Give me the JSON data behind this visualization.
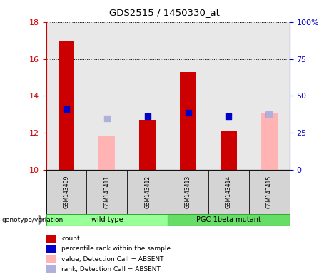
{
  "title": "GDS2515 / 1450330_at",
  "samples": [
    "GSM143409",
    "GSM143411",
    "GSM143412",
    "GSM143413",
    "GSM143414",
    "GSM143415"
  ],
  "ylim_left": [
    10,
    18
  ],
  "ylim_right": [
    0,
    100
  ],
  "yticks_left": [
    10,
    12,
    14,
    16,
    18
  ],
  "yticks_right": [
    0,
    25,
    50,
    75,
    100
  ],
  "yticklabels_right": [
    "0",
    "25",
    "50",
    "75",
    "100%"
  ],
  "red_bars": [
    17.0,
    null,
    12.7,
    15.3,
    12.1,
    null
  ],
  "pink_bars": [
    null,
    11.8,
    null,
    null,
    null,
    13.1
  ],
  "blue_dots": [
    13.3,
    null,
    12.9,
    13.1,
    12.9,
    13.0
  ],
  "lavender_dots": [
    null,
    12.8,
    null,
    null,
    null,
    13.0
  ],
  "bar_color_red": "#cc0000",
  "bar_color_pink": "#ffb3b3",
  "dot_color_blue": "#0000cc",
  "dot_color_lavender": "#b0b0dd",
  "bg_plot": "#e8e8e8",
  "left_axis_color": "#cc0000",
  "right_axis_color": "#0000cc",
  "wt_color": "#99ff99",
  "pgc_color": "#66dd66",
  "group_border": "#33aa33",
  "sample_bg": "#d4d4d4",
  "legend_items": [
    {
      "label": "count",
      "color": "#cc0000"
    },
    {
      "label": "percentile rank within the sample",
      "color": "#0000cc"
    },
    {
      "label": "value, Detection Call = ABSENT",
      "color": "#ffb3b3"
    },
    {
      "label": "rank, Detection Call = ABSENT",
      "color": "#b0b0dd"
    }
  ]
}
